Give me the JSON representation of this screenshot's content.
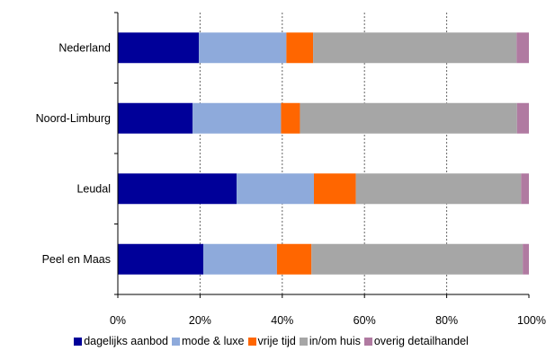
{
  "chart_data": {
    "type": "bar",
    "orientation": "horizontal",
    "stacked": true,
    "percent_stacked": true,
    "categories": [
      "Nederland",
      "Noord-Limburg",
      "Leudal",
      "Peel en Maas"
    ],
    "series": [
      {
        "name": "dagelijks aanbod",
        "color": "#000099",
        "values": [
          19.7,
          18.2,
          28.9,
          20.8
        ]
      },
      {
        "name": "mode & luxe",
        "color": "#8EAADB",
        "values": [
          21.3,
          21.5,
          18.8,
          17.9
        ]
      },
      {
        "name": "vrije tijd",
        "color": "#FF6600",
        "values": [
          6.5,
          4.6,
          10.2,
          8.4
        ]
      },
      {
        "name": "in/om huis",
        "color": "#A6A6A6",
        "values": [
          49.5,
          52.8,
          40.2,
          51.4
        ]
      },
      {
        "name": "overig detailhandel",
        "color": "#B07AA1",
        "values": [
          3.0,
          2.9,
          1.9,
          1.5
        ]
      }
    ],
    "x_ticks": [
      "0%",
      "20%",
      "40%",
      "60%",
      "80%",
      "100%"
    ],
    "xlim": [
      0,
      100
    ],
    "grid": "vertical-dashed",
    "legend_position": "bottom"
  }
}
